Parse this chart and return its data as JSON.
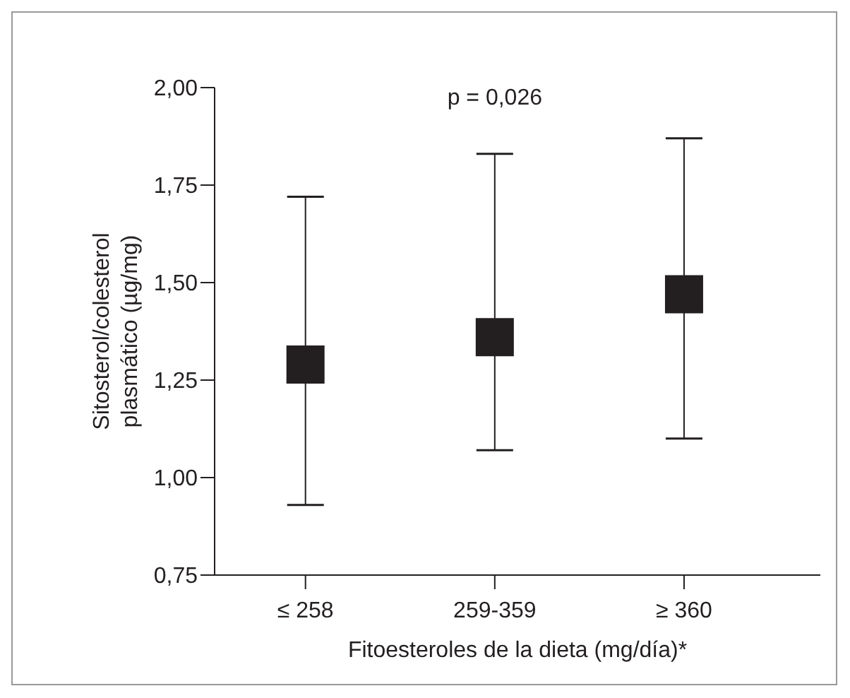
{
  "chart_data": {
    "type": "scatter",
    "marker": "square",
    "categories": [
      "≤ 258",
      "259-359",
      "≥ 360"
    ],
    "series": [
      {
        "color": "#231f20",
        "values": [
          1.29,
          1.36,
          1.47
        ],
        "errors": [
          [
            0.93,
            1.72
          ],
          [
            1.07,
            1.83
          ],
          [
            1.1,
            1.87
          ]
        ]
      }
    ],
    "ylim": [
      0.75,
      2.0
    ],
    "yticks": [
      {
        "value": 0.75,
        "label": "0,75"
      },
      {
        "value": 1.0,
        "label": "1,00"
      },
      {
        "value": 1.25,
        "label": "1,25"
      },
      {
        "value": 1.5,
        "label": "1,50"
      },
      {
        "value": 1.75,
        "label": "1,75"
      },
      {
        "value": 2.0,
        "label": "2,00"
      }
    ],
    "xlabel": "Fitoesteroles de la dieta (mg/día)*",
    "ylabel": "Sitosterol/colesterol\nplasmático (µg/mg)",
    "annotations": [
      "p = 0,026"
    ]
  }
}
